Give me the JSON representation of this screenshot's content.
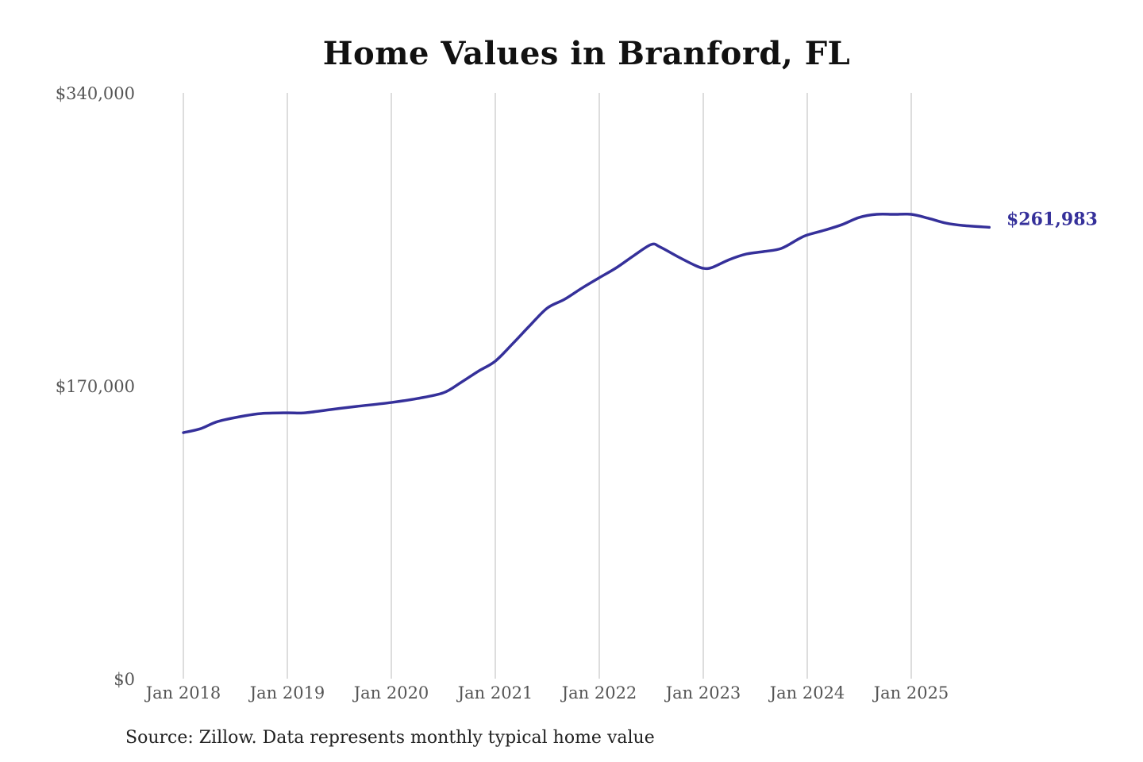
{
  "chart_data": {
    "type": "line",
    "title": "Home Values in Branford, FL",
    "xlabel": "",
    "ylabel": "",
    "source": "Source: Zillow. Data represents monthly typical home value",
    "ylim": [
      0,
      340000
    ],
    "yticks": [
      0,
      170000,
      340000
    ],
    "ytick_labels": [
      "$0",
      "$170,000",
      "$340,000"
    ],
    "xticks": [
      "2018-01",
      "2019-01",
      "2020-01",
      "2021-01",
      "2022-01",
      "2023-01",
      "2024-01",
      "2025-01"
    ],
    "xtick_labels": [
      "Jan 2018",
      "Jan 2019",
      "Jan 2020",
      "Jan 2021",
      "Jan 2022",
      "Jan 2023",
      "Jan 2024",
      "Jan 2025"
    ],
    "grid": "vertical",
    "line_color": "#35309a",
    "end_label": "$261,983",
    "series": [
      {
        "x": [
          "2018-01",
          "2018-03",
          "2018-05",
          "2018-08",
          "2018-10",
          "2019-01",
          "2019-03",
          "2019-06",
          "2019-09",
          "2020-01",
          "2020-04",
          "2020-07",
          "2020-09",
          "2020-11",
          "2021-01",
          "2021-03",
          "2021-05",
          "2021-07",
          "2021-09",
          "2021-11",
          "2022-01",
          "2022-03",
          "2022-05",
          "2022-07",
          "2022-08",
          "2022-10",
          "2022-12",
          "2023-01",
          "2023-02",
          "2023-04",
          "2023-06",
          "2023-08",
          "2023-10",
          "2023-12",
          "2024-01",
          "2024-03",
          "2024-05",
          "2024-07",
          "2024-09",
          "2024-11",
          "2025-01",
          "2025-03",
          "2025-05",
          "2025-07",
          "2025-10"
        ],
        "values": [
          142800,
          145100,
          149300,
          152500,
          153900,
          154300,
          154300,
          156200,
          158000,
          160300,
          162600,
          165900,
          171800,
          178300,
          184300,
          194400,
          205000,
          215100,
          220200,
          226700,
          232700,
          238600,
          245600,
          252000,
          250600,
          245100,
          240000,
          238200,
          238600,
          243200,
          246500,
          247900,
          249700,
          255200,
          257500,
          260300,
          263500,
          267700,
          269500,
          269500,
          269500,
          267200,
          264400,
          263000,
          261983
        ]
      }
    ]
  }
}
